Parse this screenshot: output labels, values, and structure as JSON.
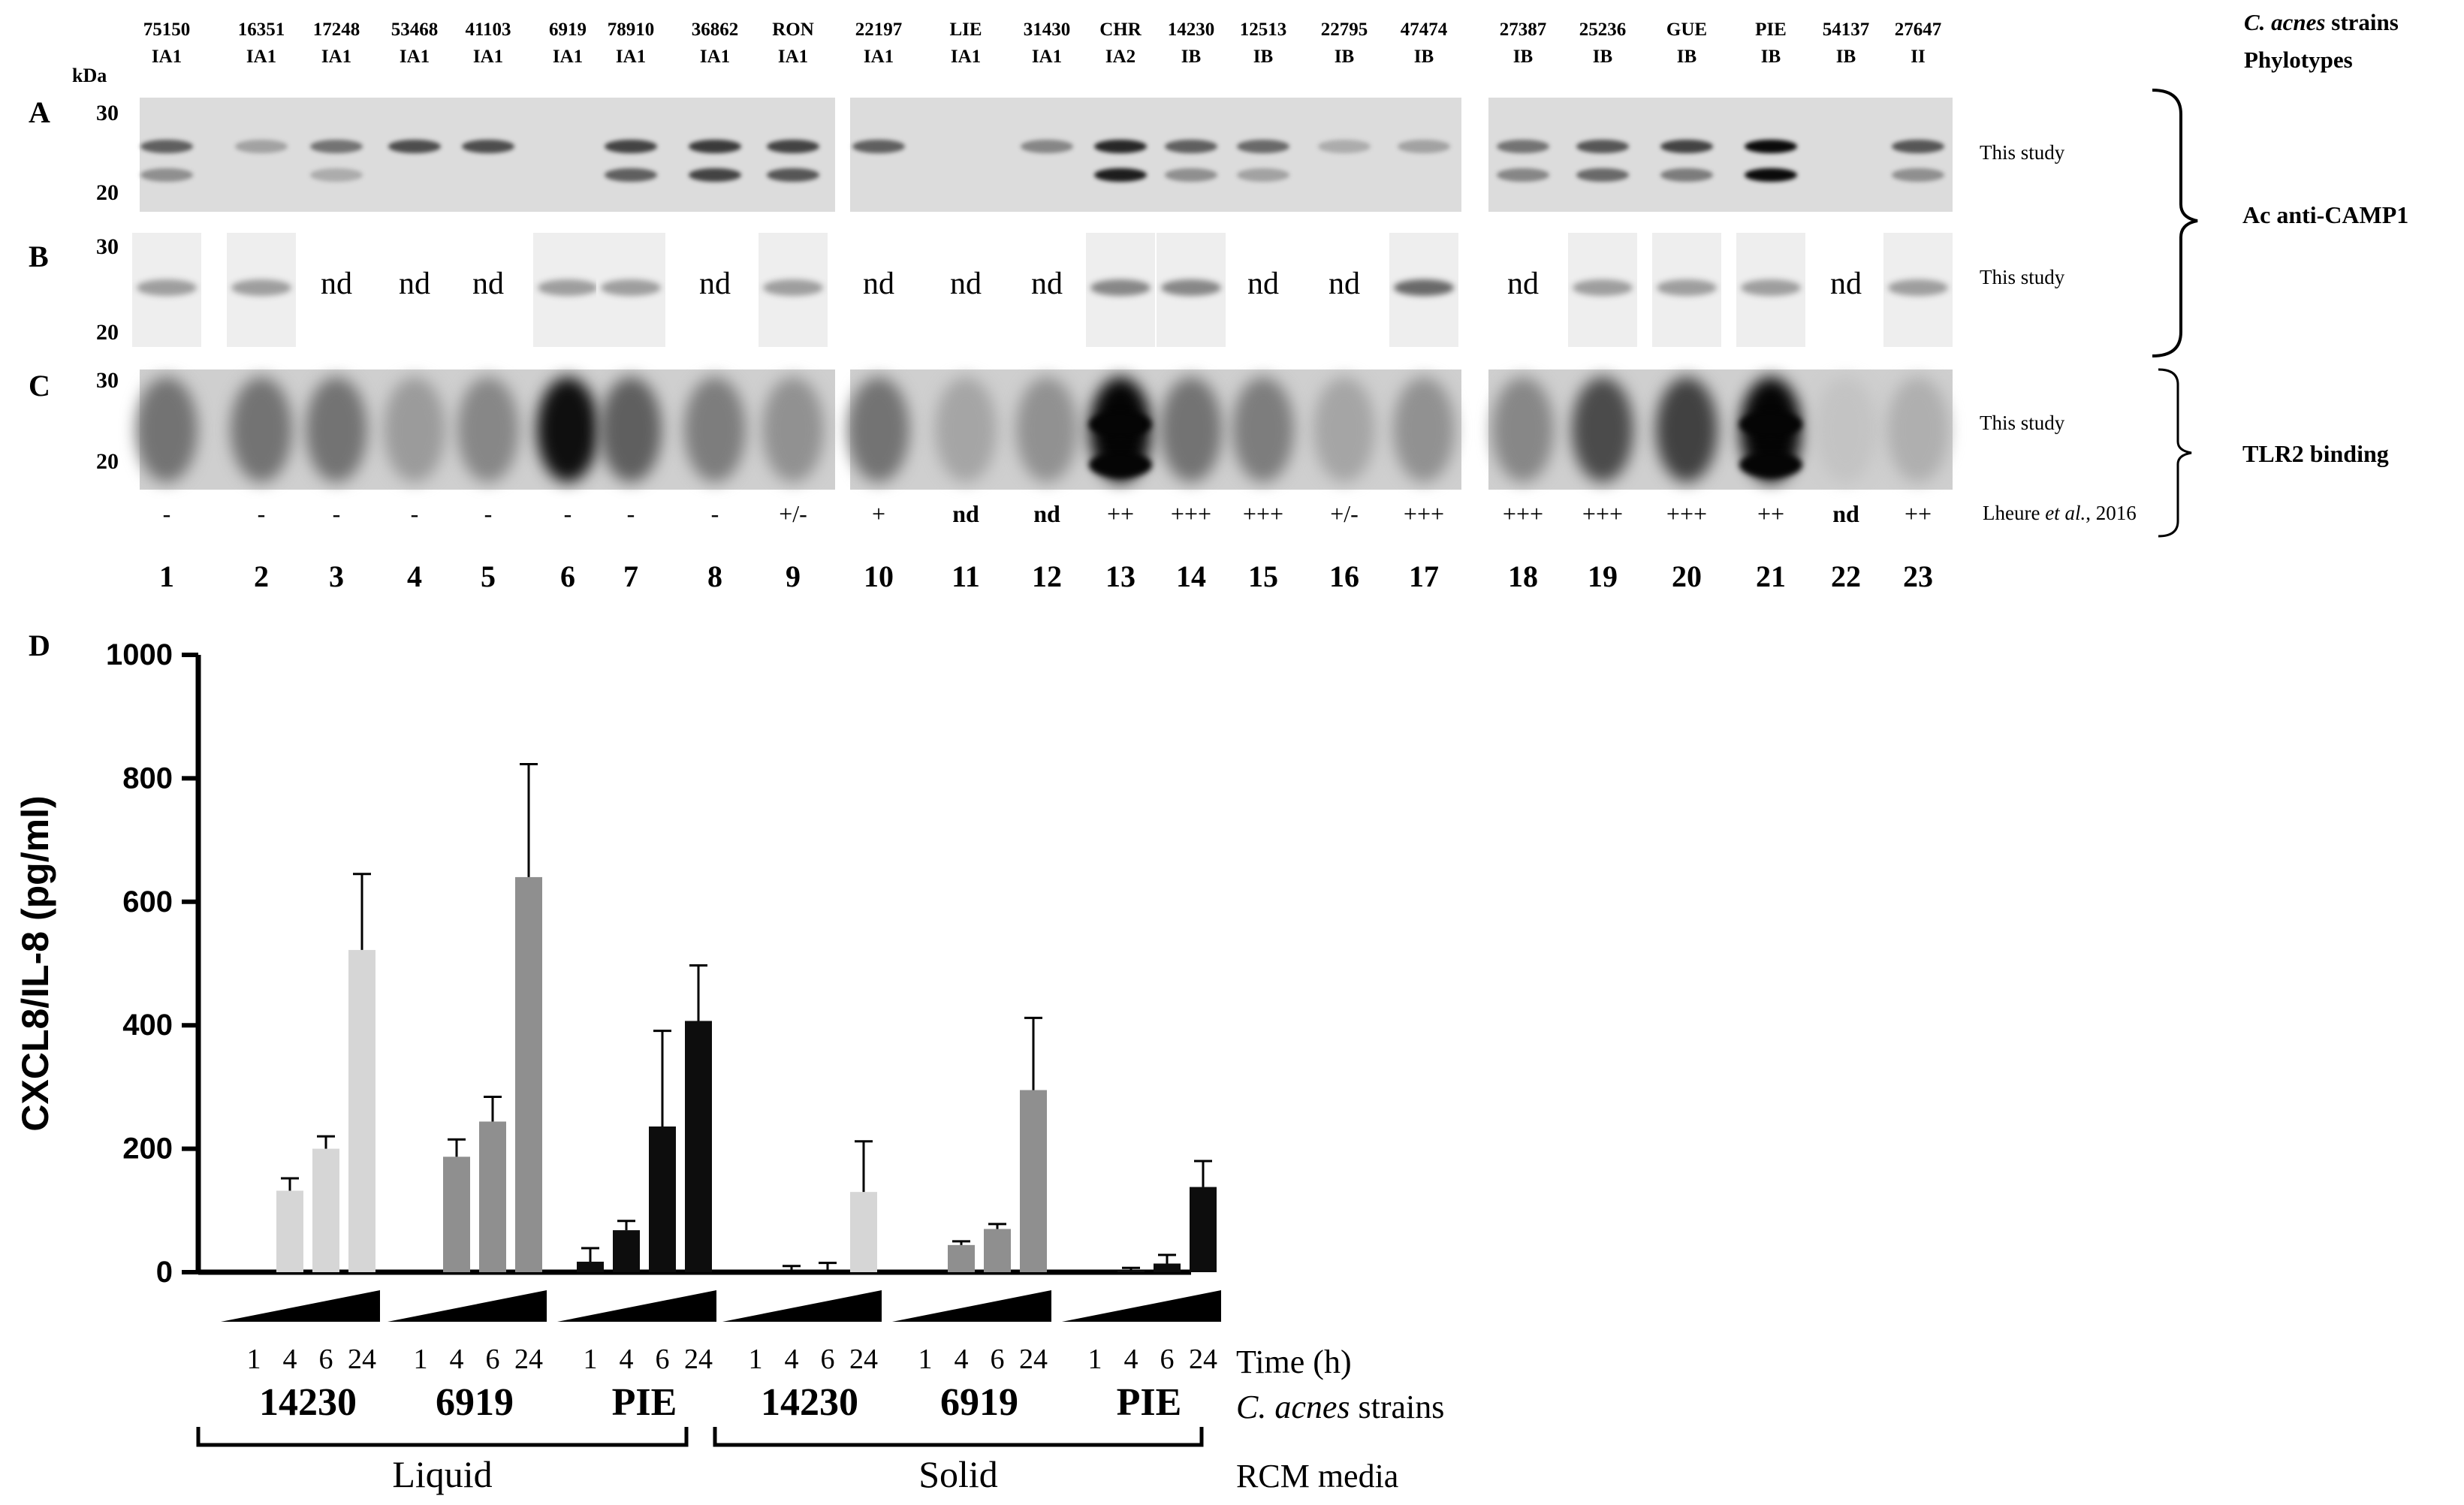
{
  "lanes": [
    {
      "num": "1",
      "strain": "75150",
      "type": "IA1",
      "cl": "-"
    },
    {
      "num": "2",
      "strain": "16351",
      "type": "IA1",
      "cl": "-"
    },
    {
      "num": "3",
      "strain": "17248",
      "type": "IA1",
      "cl": "-"
    },
    {
      "num": "4",
      "strain": "53468",
      "type": "IA1",
      "cl": "-"
    },
    {
      "num": "5",
      "strain": "41103",
      "type": "IA1",
      "cl": "-"
    },
    {
      "num": "6",
      "strain": "6919",
      "type": "IA1",
      "cl": "-"
    },
    {
      "num": "7",
      "strain": "78910",
      "type": "IA1",
      "cl": "-"
    },
    {
      "num": "8",
      "strain": "36862",
      "type": "IA1",
      "cl": "-"
    },
    {
      "num": "9",
      "strain": "RON",
      "type": "IA1",
      "cl": "+/-"
    },
    {
      "num": "10",
      "strain": "22197",
      "type": "IA1",
      "cl": "+"
    },
    {
      "num": "11",
      "strain": "LIE",
      "type": "IA1",
      "cl": "nd"
    },
    {
      "num": "12",
      "strain": "31430",
      "type": "IA1",
      "cl": "nd"
    },
    {
      "num": "13",
      "strain": "CHR",
      "type": "IA2",
      "cl": "++"
    },
    {
      "num": "14",
      "strain": "14230",
      "type": "IB",
      "cl": "+++"
    },
    {
      "num": "15",
      "strain": "12513",
      "type": "IB",
      "cl": "+++"
    },
    {
      "num": "16",
      "strain": "22795",
      "type": "IB",
      "cl": "+/-"
    },
    {
      "num": "17",
      "strain": "47474",
      "type": "IB",
      "cl": "+++"
    },
    {
      "num": "18",
      "strain": "27387",
      "type": "IB",
      "cl": "+++"
    },
    {
      "num": "19",
      "strain": "25236",
      "type": "IB",
      "cl": "+++"
    },
    {
      "num": "20",
      "strain": "GUE",
      "type": "IB",
      "cl": "+++"
    },
    {
      "num": "21",
      "strain": "PIE",
      "type": "IB",
      "cl": "++"
    },
    {
      "num": "22",
      "strain": "54137",
      "type": "IB",
      "cl": "nd"
    },
    {
      "num": "23",
      "strain": "27647",
      "type": "II",
      "cl": "++"
    }
  ],
  "header": {
    "strains_italic": "C. acnes",
    "strains_rest": " strains",
    "phylotypes": "Phylotypes",
    "kda": "kDa"
  },
  "panels": {
    "a": "A",
    "b": "B",
    "c": "C",
    "d": "D"
  },
  "mw": {
    "top": "30",
    "bottom": "20"
  },
  "nd_label": "nd",
  "panel_b_nd": [
    false,
    false,
    true,
    true,
    true,
    false,
    false,
    true,
    false,
    true,
    true,
    true,
    false,
    false,
    true,
    true,
    false,
    true,
    false,
    false,
    false,
    true,
    false
  ],
  "this_study": "This study",
  "citation": {
    "prefix": "Lheure ",
    "italic": "et al.",
    "suffix": ", 2016"
  },
  "side_labels": {
    "camp1": "Ac anti-CAMP1",
    "tlr2": "TLR2 binding"
  },
  "blot_colors": {
    "a": "#dcdcdc",
    "b": "#eeeeee",
    "c": "#cfcfcf"
  },
  "bar_colors": {
    "14230": "#d6d6d6",
    "6919": "#8f8f8f",
    "PIE": "#0d0d0d"
  },
  "chart_data": {
    "type": "bar",
    "ylabel": "CXCL8/IL-8 (pg/ml)",
    "ylim": [
      0,
      1000
    ],
    "yticks": [
      "0",
      "200",
      "400",
      "600",
      "800",
      "1000"
    ],
    "time_label": "Time (h)",
    "time_points": [
      "1",
      "4",
      "6",
      "24"
    ],
    "strain_label_italic": "C. acnes",
    "strain_label_rest": " strains",
    "media_label": "RCM media",
    "groups": [
      {
        "medium": "Liquid",
        "strain": "14230",
        "values": [
          0,
          132,
          200,
          522
        ],
        "errors": [
          0,
          20,
          20,
          123
        ]
      },
      {
        "medium": "Liquid",
        "strain": "6919",
        "values": [
          0,
          187,
          244,
          640
        ],
        "errors": [
          0,
          28,
          40,
          183
        ]
      },
      {
        "medium": "Liquid",
        "strain": "PIE",
        "values": [
          17,
          68,
          236,
          407
        ],
        "errors": [
          22,
          15,
          155,
          90
        ]
      },
      {
        "medium": "Solid",
        "strain": "14230",
        "values": [
          0,
          0,
          0,
          130
        ],
        "errors": [
          0,
          10,
          15,
          82
        ]
      },
      {
        "medium": "Solid",
        "strain": "6919",
        "values": [
          0,
          44,
          70,
          295
        ],
        "errors": [
          0,
          6,
          8,
          117
        ]
      },
      {
        "medium": "Solid",
        "strain": "PIE",
        "values": [
          0,
          3,
          14,
          138
        ],
        "errors": [
          0,
          4,
          14,
          42
        ]
      }
    ],
    "media": [
      "Liquid",
      "Solid"
    ]
  }
}
